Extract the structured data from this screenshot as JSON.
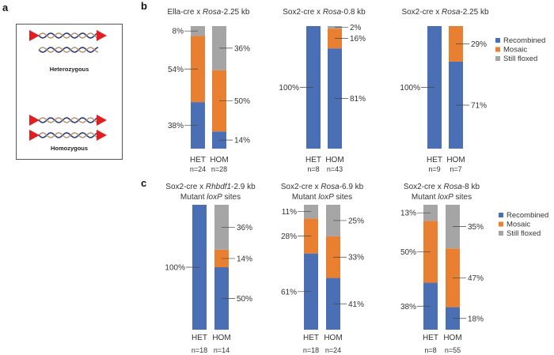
{
  "panels": {
    "a": "a",
    "b": "b",
    "c": "c"
  },
  "panel_a": {
    "heterozygous": "Heterozygous",
    "homozygous": "Homozygous"
  },
  "colors": {
    "Recombined": "#4a6fb5",
    "Mosaic": "#e97f30",
    "Still floxed": "#a5a5a5",
    "loxp": "#e02020"
  },
  "chart_data": [
    {
      "type": "bar",
      "stacked": true,
      "panel": "b",
      "title": [
        "Ella-cre x ",
        "Rosa",
        "-2.25 kb"
      ],
      "categories": [
        "HET",
        "HOM"
      ],
      "n": [
        "n=24",
        "n=28"
      ],
      "series": [
        {
          "name": "Recombined",
          "values": [
            38,
            14
          ]
        },
        {
          "name": "Mosaic",
          "values": [
            54,
            50
          ]
        },
        {
          "name": "Still floxed",
          "values": [
            8,
            36
          ]
        }
      ],
      "ylim": [
        0,
        100
      ]
    },
    {
      "type": "bar",
      "stacked": true,
      "panel": "b",
      "title": [
        "Sox2-cre x ",
        "Rosa",
        "-0.8 kb"
      ],
      "categories": [
        "HET",
        "HOM"
      ],
      "n": [
        "n=8",
        "n=43"
      ],
      "series": [
        {
          "name": "Recombined",
          "values": [
            100,
            81
          ]
        },
        {
          "name": "Mosaic",
          "values": [
            0,
            16
          ]
        },
        {
          "name": "Still floxed",
          "values": [
            0,
            2
          ]
        }
      ],
      "ylim": [
        0,
        100
      ]
    },
    {
      "type": "bar",
      "stacked": true,
      "panel": "b",
      "title": [
        "Sox2-cre x ",
        "Rosa",
        "-2.25 kb"
      ],
      "categories": [
        "HET",
        "HOM"
      ],
      "n": [
        "n=9",
        "n=7"
      ],
      "series": [
        {
          "name": "Recombined",
          "values": [
            100,
            71
          ]
        },
        {
          "name": "Mosaic",
          "values": [
            0,
            29
          ]
        },
        {
          "name": "Still floxed",
          "values": [
            0,
            0
          ]
        }
      ],
      "ylim": [
        0,
        100
      ]
    },
    {
      "type": "bar",
      "stacked": true,
      "panel": "c",
      "title": [
        "Sox2-cre x ",
        "Rhbdf1",
        "-2.9 kb"
      ],
      "subtitle": [
        "Mutant ",
        "loxP",
        " sites"
      ],
      "categories": [
        "HET",
        "HOM"
      ],
      "n": [
        "n=18",
        "n=14"
      ],
      "series": [
        {
          "name": "Recombined",
          "values": [
            100,
            50
          ]
        },
        {
          "name": "Mosaic",
          "values": [
            0,
            14
          ]
        },
        {
          "name": "Still floxed",
          "values": [
            0,
            36
          ]
        }
      ],
      "ylim": [
        0,
        100
      ]
    },
    {
      "type": "bar",
      "stacked": true,
      "panel": "c",
      "title": [
        "Sox2-cre x ",
        "Rosa",
        "-6.9 kb"
      ],
      "subtitle": [
        "Mutant ",
        "loxP",
        " sites"
      ],
      "categories": [
        "HET",
        "HOM"
      ],
      "n": [
        "n=18",
        "n=24"
      ],
      "series": [
        {
          "name": "Recombined",
          "values": [
            61,
            41
          ]
        },
        {
          "name": "Mosaic",
          "values": [
            28,
            33
          ]
        },
        {
          "name": "Still floxed",
          "values": [
            11,
            25
          ]
        }
      ],
      "ylim": [
        0,
        100
      ]
    },
    {
      "type": "bar",
      "stacked": true,
      "panel": "c",
      "title": [
        "Sox2-cre x ",
        "Rosa",
        "-8 kb"
      ],
      "subtitle": [
        "Mutant ",
        "loxP",
        " sites"
      ],
      "categories": [
        "HET",
        "HOM"
      ],
      "n": [
        "n=8",
        "n=55"
      ],
      "series": [
        {
          "name": "Recombined",
          "values": [
            38,
            18
          ]
        },
        {
          "name": "Mosaic",
          "values": [
            50,
            47
          ]
        },
        {
          "name": "Still floxed",
          "values": [
            13,
            35
          ]
        }
      ],
      "ylim": [
        0,
        100
      ]
    }
  ],
  "legend": [
    "Recombined",
    "Mosaic",
    "Still floxed"
  ]
}
